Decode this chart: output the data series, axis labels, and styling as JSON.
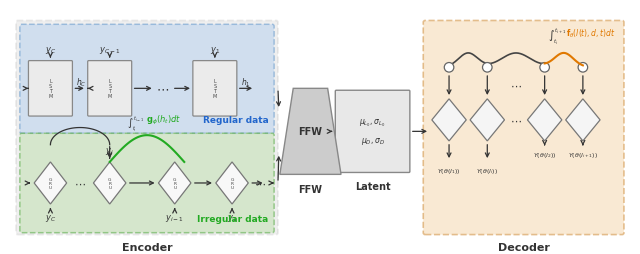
{
  "fig_width": 6.4,
  "fig_height": 2.55,
  "dpi": 100,
  "bg_color": "#ffffff",
  "encoder_label": "Encoder",
  "regular_label": "Regular data",
  "irregular_label": "Irregular data",
  "decoder_label": "Decoder",
  "ffw_label": "FFW",
  "latent_label": "Latent",
  "blue_box_color": "#b8d0ee",
  "green_box_color": "#c0e0b0",
  "decoder_box_color": "#f5d5a8",
  "encoder_border_color": "#999999",
  "lstm_fc": "#ebebeb",
  "lstm_ec": "#888888",
  "gru_fc": "#f8f8f8",
  "gru_ec": "#777777",
  "latent_fc": "#e8e8e8",
  "latent_ec": "#888888",
  "ffw_fc": "#cccccc",
  "ffw_ec": "#888888",
  "green_color": "#22aa22",
  "orange_color": "#e07800",
  "arrow_color": "#333333",
  "blue_label_color": "#2266cc",
  "green_label_color": "#22aa22",
  "text_color": "#333333",
  "circle_ec": "#666666",
  "diamond_ec": "#777777"
}
